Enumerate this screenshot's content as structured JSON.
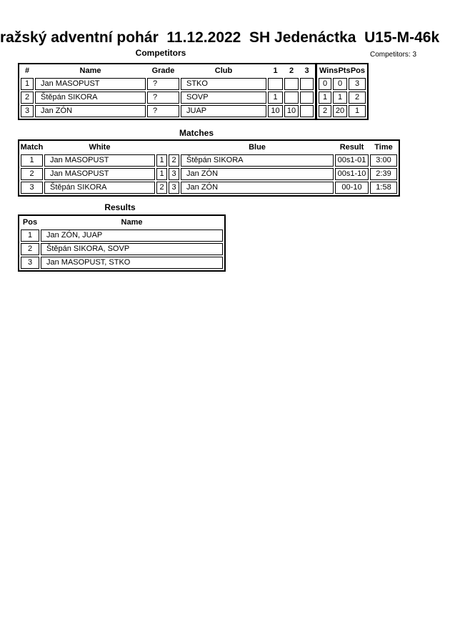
{
  "page": {
    "title": "ražský adventní pohár  11.12.2022  SH Jedenáctka  U15-M-46k",
    "competitors_count": "Competitors: 3"
  },
  "colors": {
    "text": "#000000",
    "background": "#ffffff",
    "border": "#000000"
  },
  "competitors": {
    "heading": "Competitors",
    "headers": {
      "num": "#",
      "name": "Name",
      "grade": "Grade",
      "club": "Club",
      "c1": "1",
      "c2": "2",
      "c3": "3",
      "wins": "Wins",
      "pts": "Pts",
      "pos": "Pos"
    },
    "rows": [
      {
        "num": "1",
        "name": "Jan MASOPUST",
        "grade": "?",
        "club": "STKO",
        "c1": "",
        "c2": "",
        "c3": "",
        "wins": "0",
        "pts": "0",
        "pos": "3"
      },
      {
        "num": "2",
        "name": "Štěpán SIKORA",
        "grade": "?",
        "club": "SOVP",
        "c1": "1",
        "c2": "",
        "c3": "",
        "wins": "1",
        "pts": "1",
        "pos": "2"
      },
      {
        "num": "3",
        "name": "Jan ZÓN",
        "grade": "?",
        "club": "JUAP",
        "c1": "10",
        "c2": "10",
        "c3": "",
        "wins": "2",
        "pts": "20",
        "pos": "1"
      }
    ]
  },
  "matches": {
    "heading": "Matches",
    "headers": {
      "match": "Match",
      "white": "White",
      "blue": "Blue",
      "result": "Result",
      "time": "Time"
    },
    "rows": [
      {
        "num": "1",
        "white": "Jan MASOPUST",
        "wnum": "1",
        "bnum": "2",
        "blue": "Štěpán SIKORA",
        "result": "00s1-01",
        "time": "3:00"
      },
      {
        "num": "2",
        "white": "Jan MASOPUST",
        "wnum": "1",
        "bnum": "3",
        "blue": "Jan ZÓN",
        "result": "00s1-10",
        "time": "2:39"
      },
      {
        "num": "3",
        "white": "Štěpán SIKORA",
        "wnum": "2",
        "bnum": "3",
        "blue": "Jan ZÓN",
        "result": "00-10",
        "time": "1:58"
      }
    ]
  },
  "results": {
    "heading": "Results",
    "headers": {
      "pos": "Pos",
      "name": "Name"
    },
    "rows": [
      {
        "pos": "1",
        "name": "Jan ZÓN, JUAP"
      },
      {
        "pos": "2",
        "name": "Štěpán SIKORA, SOVP"
      },
      {
        "pos": "3",
        "name": "Jan MASOPUST, STKO"
      }
    ]
  }
}
